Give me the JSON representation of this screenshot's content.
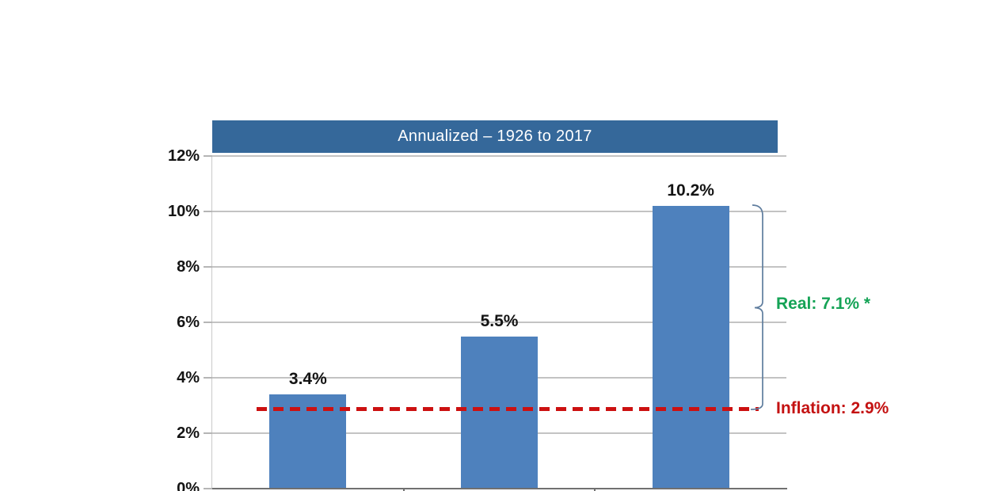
{
  "banner": {
    "title": "Annualized – 1926 to 2017"
  },
  "colors": {
    "banner_bg": "#35689A",
    "bar_fill": "#4E81BD",
    "gridline": "#C3C3C3",
    "axis": "#707070",
    "dash_red": "#CC1111",
    "inflation_text_red": "#C41212",
    "real_text_green": "#15A356",
    "brace_blue": "#5F7D9E",
    "value_label_black": "#141414",
    "title_text": "#FFFFFF"
  },
  "chart_data": {
    "type": "bar",
    "title": "Annualized – 1926 to 2017",
    "categories": [
      "",
      "",
      ""
    ],
    "values": [
      3.4,
      5.5,
      10.2
    ],
    "bar_labels": [
      "3.4%",
      "5.5%",
      "10.2%"
    ],
    "xlabel": "",
    "ylabel": "",
    "y_tick_labels": [
      "0%",
      "2%",
      "4%",
      "6%",
      "8%",
      "10%",
      "12%"
    ],
    "ylim": [
      0,
      12
    ],
    "grid": "horizontal-only",
    "legend": "none",
    "annotations": {
      "inflation_line": {
        "value": 2.9,
        "label": "Inflation: 2.9%",
        "style": "red-dashed"
      },
      "real_bracket": {
        "from": 2.9,
        "to": 10.2,
        "label": "Real: 7.1% *",
        "style": "green-label-blue-brace"
      }
    }
  }
}
